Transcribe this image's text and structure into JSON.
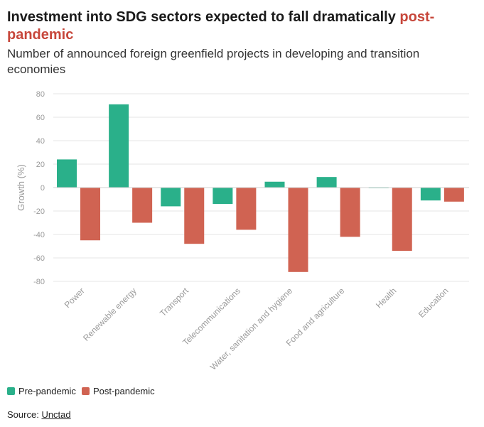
{
  "header": {
    "title_main": "Investment into SDG sectors expected to fall dramatically",
    "title_accent": "post-pandemic",
    "subtitle": "Number of announced foreign greenfield projects in developing and transition economies"
  },
  "colors": {
    "pre": "#2ab08a",
    "post": "#d06352",
    "accent": "#c7473b",
    "grid": "#e6e6e6",
    "axis_text": "#9a9a9a"
  },
  "chart_data": {
    "type": "bar",
    "title": "Investment into SDG sectors expected to fall dramatically post-pandemic",
    "subtitle": "Number of announced foreign greenfield projects in developing and transition economies",
    "xlabel": "",
    "ylabel": "Growth (%)",
    "ylim": [
      -80,
      80
    ],
    "yticks": [
      80,
      60,
      40,
      20,
      0,
      -20,
      -40,
      -60,
      -80
    ],
    "grid": true,
    "legend_position": "bottom-left",
    "categories": [
      "Power",
      "Renewable energy",
      "Transport",
      "Telecommunications",
      "Water, sanitation and hygiene",
      "Food and agriculture",
      "Health",
      "Education"
    ],
    "series": [
      {
        "name": "Pre-pandemic",
        "color": "#2ab08a",
        "values": [
          24,
          71,
          -16,
          -14,
          5,
          9,
          -0.5,
          -11
        ]
      },
      {
        "name": "Post-pandemic",
        "color": "#d06352",
        "values": [
          -45,
          -30,
          -48,
          -36,
          -72,
          -42,
          -54,
          -12
        ]
      }
    ]
  },
  "footer": {
    "source_prefix": "Source:",
    "source_link": "Unctad"
  }
}
